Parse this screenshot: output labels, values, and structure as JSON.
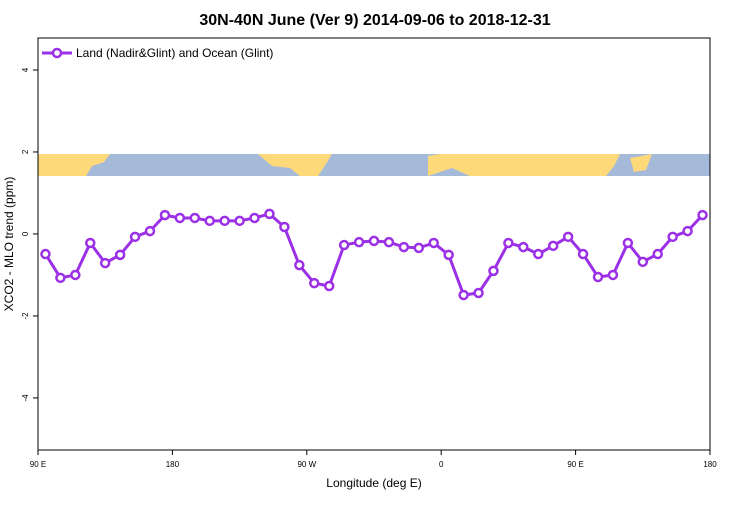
{
  "chart_data": {
    "type": "line",
    "title": "30N-40N June (Ver 9)   2014-09-06 to 2018-12-31",
    "x_label": "Longitude (deg E)",
    "y_label": "XCO2 - MLO trend (ppm)",
    "xlim": [
      90,
      540
    ],
    "ylim": [
      -5.27,
      4.78
    ],
    "xticks": [
      {
        "value": 90,
        "label": "90 E"
      },
      {
        "value": 180,
        "label": "180"
      },
      {
        "value": 270,
        "label": "90 W"
      },
      {
        "value": 360,
        "label": "0"
      },
      {
        "value": 450,
        "label": "90 E"
      },
      {
        "value": 540,
        "label": "180"
      }
    ],
    "yticks": [
      -4,
      -2,
      0,
      2,
      4
    ],
    "legend": "top-left",
    "x": [
      95,
      105,
      115,
      125,
      135,
      145,
      155,
      165,
      175,
      185,
      195,
      205,
      215,
      225,
      235,
      245,
      255,
      265,
      275,
      285,
      295,
      305,
      315,
      325,
      335,
      345,
      355,
      365,
      375,
      385,
      395,
      405,
      415,
      425,
      435,
      445,
      455,
      465,
      475,
      485,
      495,
      505,
      515,
      525,
      535
    ],
    "series": [
      {
        "name": "Land (Nadir&Glint) and Ocean (Glint)",
        "color": "#9b30e6",
        "values": [
          -0.49,
          -1.07,
          -1.0,
          -0.22,
          -0.71,
          -0.51,
          -0.07,
          0.07,
          0.46,
          0.39,
          0.39,
          0.32,
          0.32,
          0.32,
          0.39,
          0.49,
          0.17,
          -0.76,
          -1.2,
          -1.27,
          -0.27,
          -0.2,
          -0.17,
          -0.2,
          -0.32,
          -0.34,
          -0.22,
          -0.51,
          -1.49,
          -1.44,
          -0.9,
          -0.22,
          -0.32,
          -0.49,
          -0.29,
          -0.07,
          -0.49,
          -1.05,
          -1.0,
          -0.22,
          -0.68,
          -0.49,
          -0.07,
          0.07,
          0.46
        ]
      }
    ]
  }
}
